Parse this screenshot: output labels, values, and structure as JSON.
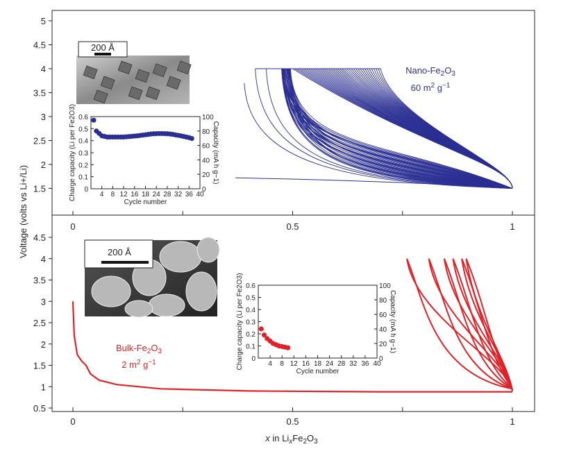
{
  "colors": {
    "nano": "#2b2f92",
    "bulk": "#e02228",
    "axis": "#222222"
  },
  "chart_data": [
    {
      "type": "line",
      "title": "",
      "ylabel": "Voltage (volts vs Li+/Li)",
      "xlabel": "x in LixFe2O3",
      "xlim": [
        0,
        1
      ],
      "ylim": [
        1.5,
        5
      ],
      "yticks": [
        "5",
        "4.5",
        "4",
        "3.5",
        "3",
        "2.5",
        "2",
        "1.5"
      ],
      "xticks": [
        "0",
        "0.5",
        "1"
      ],
      "annotation": {
        "name": "Nano-Fe",
        "sub1": "2",
        "mid": "O",
        "sub2": "3",
        "area": "60 m",
        "sup": "2",
        "unit": " g",
        "sup2": "−1"
      },
      "series": [
        {
          "name": "Nano-Fe2O3",
          "cycles": 40,
          "first_discharge_start_x": 0.39,
          "charge_end_v": 4.0,
          "discharge_end_v": 1.5,
          "x_range_cycling": [
            0.47,
            1.0
          ]
        }
      ],
      "inset": {
        "type": "scatter",
        "ylabel": "Charge capacity (Li per Fe2O3)",
        "y2label": "Capacity (mA h g−1)",
        "xlabel": "Cycle number",
        "yticks": [
          "0",
          "0.1",
          "0.2",
          "0.3",
          "0.4",
          "0.5",
          "0.6"
        ],
        "y2ticks": [
          "0",
          "20",
          "40",
          "60",
          "80",
          "100"
        ],
        "xticks": [
          "4",
          "8",
          "12",
          "16",
          "18",
          "24",
          "28",
          "32",
          "36",
          "40"
        ],
        "xlim": [
          0,
          40
        ],
        "ylim": [
          0,
          0.6
        ],
        "x": [
          1,
          2,
          3,
          4,
          5,
          6,
          7,
          8,
          9,
          10,
          11,
          12,
          13,
          14,
          15,
          16,
          17,
          18,
          19,
          20,
          21,
          22,
          23,
          24,
          25,
          26,
          27,
          28,
          29,
          30,
          31,
          32,
          33,
          34,
          35,
          36,
          37
        ],
        "y": [
          0.57,
          0.48,
          0.46,
          0.44,
          0.435,
          0.43,
          0.43,
          0.43,
          0.43,
          0.43,
          0.43,
          0.43,
          0.432,
          0.434,
          0.436,
          0.438,
          0.44,
          0.443,
          0.446,
          0.449,
          0.452,
          0.455,
          0.457,
          0.458,
          0.459,
          0.459,
          0.458,
          0.457,
          0.455,
          0.452,
          0.448,
          0.444,
          0.44,
          0.435,
          0.43,
          0.425,
          0.418
        ]
      },
      "scale_bar": "200 Å"
    },
    {
      "type": "line",
      "title": "",
      "ylim": [
        0.5,
        4.5
      ],
      "xlim": [
        0,
        1
      ],
      "yticks": [
        "4.5",
        "4",
        "3.5",
        "3",
        "2.5",
        "2",
        "1.5",
        "1",
        "0.5"
      ],
      "xticks": [
        "0",
        "0.5",
        "1"
      ],
      "annotation": {
        "name": "Bulk-Fe",
        "sub1": "2",
        "mid": "O",
        "sub2": "3",
        "area": "2 m",
        "sup": "2",
        "unit": " g",
        "sup2": "−1"
      },
      "series": [
        {
          "name": "Bulk-Fe2O3",
          "first_discharge": [
            [
              0,
              3.0
            ],
            [
              0.003,
              2.2
            ],
            [
              0.01,
              1.75
            ],
            [
              0.02,
              1.6
            ],
            [
              0.03,
              1.5
            ],
            [
              0.04,
              1.3
            ],
            [
              0.06,
              1.15
            ],
            [
              0.1,
              1.05
            ],
            [
              0.2,
              0.95
            ],
            [
              0.4,
              0.9
            ],
            [
              0.7,
              0.88
            ],
            [
              1.0,
              0.88
            ]
          ],
          "charge_end_x": [
            0.76,
            0.81,
            0.845,
            0.865,
            0.885,
            0.895
          ]
        }
      ],
      "inset": {
        "type": "scatter",
        "ylabel": "Charge capacity (Li per Fe2O3)",
        "y2label": "Capacity (mA h g−1)",
        "xlabel": "Cycle number",
        "yticks": [
          "0",
          "0.1",
          "0.2",
          "0.3",
          "0.4",
          "0.5",
          "0.6"
        ],
        "y2ticks": [
          "0",
          "20",
          "40",
          "60",
          "80",
          "100"
        ],
        "xticks": [
          "4",
          "8",
          "12",
          "16",
          "18",
          "24",
          "28",
          "32",
          "36",
          "40"
        ],
        "xlim": [
          0,
          40
        ],
        "ylim": [
          0,
          0.6
        ],
        "x": [
          1,
          2,
          3,
          4,
          5,
          6,
          7,
          8,
          9,
          10
        ],
        "y": [
          0.24,
          0.19,
          0.16,
          0.14,
          0.12,
          0.11,
          0.1,
          0.095,
          0.09,
          0.085
        ]
      },
      "scale_bar": "200 Å"
    }
  ],
  "axis_labels": {
    "y": "Voltage (volts vs Li+/Li)",
    "x_pre": "x",
    "x_mid": " in Li",
    "x_sub": "x",
    "x_fe": "Fe",
    "x_sub2": "2",
    "x_o": "O",
    "x_sub3": "3"
  }
}
